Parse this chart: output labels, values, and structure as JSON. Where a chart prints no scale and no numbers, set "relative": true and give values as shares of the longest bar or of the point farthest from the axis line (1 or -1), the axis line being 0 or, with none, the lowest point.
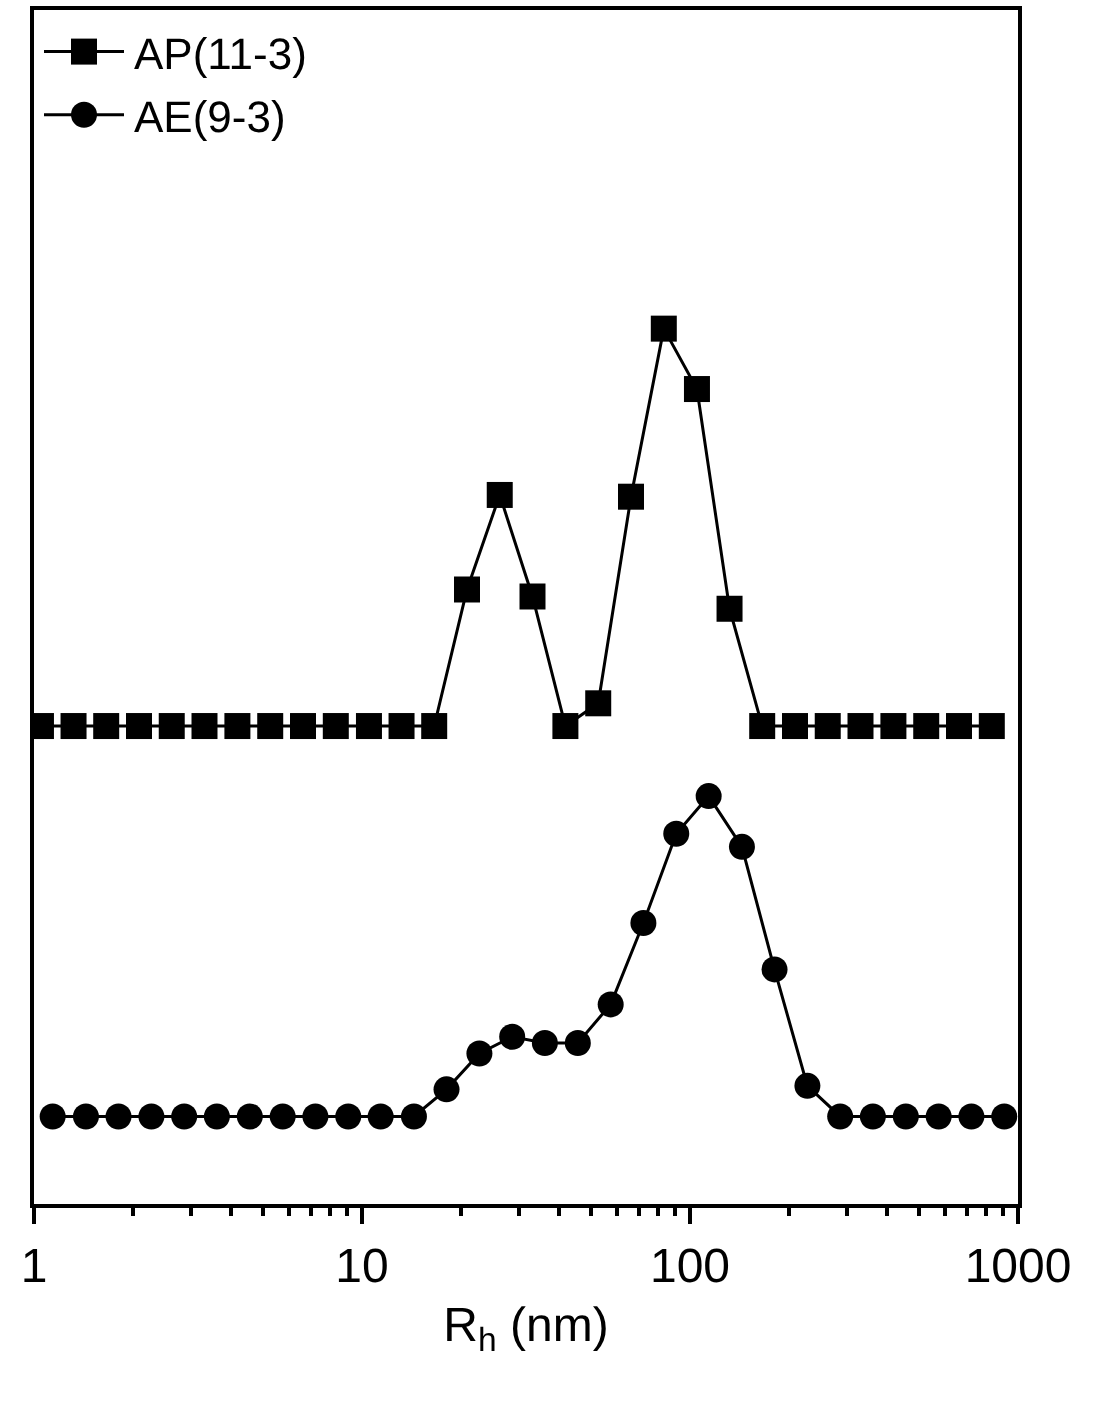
{
  "chart_data": {
    "type": "line",
    "xlabel": "R$_{h}$ (nm)",
    "relative": true,
    "log": "x",
    "xlim": [
      1,
      1000
    ],
    "xticks": [
      1,
      10,
      100,
      1000
    ],
    "tick_labels": "x",
    "legend": "top left",
    "series": [
      {
        "name": "AP(11-3)",
        "color": "#000000",
        "marker": "square",
        "x": [
          1.05,
          1.32,
          1.66,
          2.09,
          2.63,
          3.31,
          4.17,
          5.25,
          6.61,
          8.32,
          10.5,
          13.2,
          16.6,
          20.9,
          26.3,
          33.1,
          41.7,
          52.5,
          66.1,
          83.2,
          105,
          132,
          166,
          209,
          263,
          331,
          417,
          525,
          661,
          832
        ],
        "values": [
          0.546,
          0.546,
          0.546,
          0.546,
          0.546,
          0.546,
          0.546,
          0.546,
          0.546,
          0.546,
          0.546,
          0.546,
          0.546,
          0.702,
          0.81,
          0.694,
          0.546,
          0.572,
          0.808,
          1,
          0.931,
          0.68,
          0.546,
          0.546,
          0.546,
          0.546,
          0.546,
          0.546,
          0.546,
          0.546
        ]
      },
      {
        "name": "AE(9-3)",
        "color": "#000000",
        "marker": "circle",
        "x": [
          1.14,
          1.44,
          1.81,
          2.28,
          2.87,
          3.61,
          4.55,
          5.73,
          7.21,
          9.08,
          11.4,
          14.4,
          18.1,
          22.8,
          28.7,
          36.1,
          45.5,
          57.3,
          72.1,
          90.8,
          114,
          144,
          181,
          228,
          287,
          361,
          455,
          573,
          721,
          908
        ],
        "values": [
          0.1,
          0.1,
          0.1,
          0.1,
          0.1,
          0.1,
          0.1,
          0.1,
          0.1,
          0.1,
          0.1,
          0.1,
          0.131,
          0.172,
          0.191,
          0.184,
          0.184,
          0.228,
          0.321,
          0.423,
          0.466,
          0.408,
          0.268,
          0.135,
          0.1,
          0.1,
          0.1,
          0.1,
          0.1,
          0.1
        ]
      }
    ]
  }
}
